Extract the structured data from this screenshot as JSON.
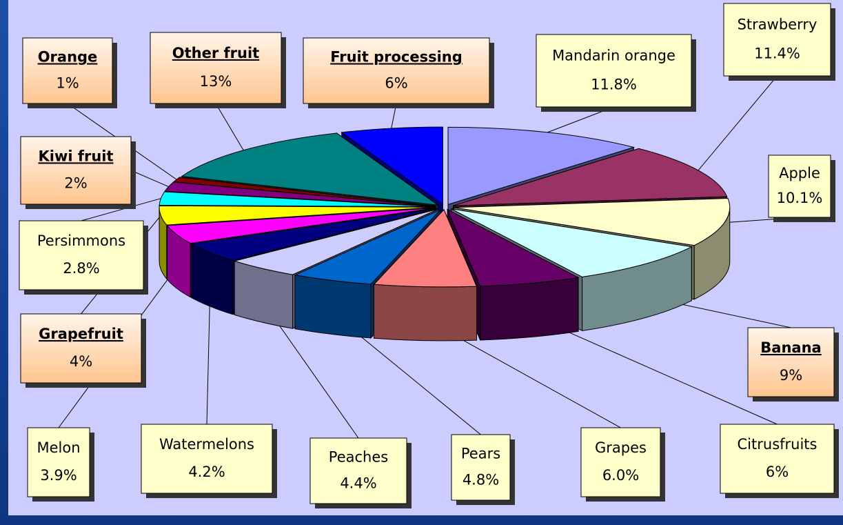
{
  "chart_data": {
    "type": "pie3d",
    "categories": [
      "Mandarin orange",
      "Strawberry",
      "Apple",
      "Banana",
      "Citrusfruits",
      "Grapes",
      "Pears",
      "Peaches",
      "Watermelons",
      "Melon",
      "Grapefruit",
      "Persimmons",
      "Kiwi fruit",
      "Orange",
      "Other fruit",
      "Fruit processing"
    ],
    "values": [
      11.8,
      11.4,
      10.1,
      9,
      6,
      6.0,
      4.8,
      4.4,
      4.2,
      3.9,
      4,
      2.8,
      2,
      1,
      13,
      6
    ],
    "value_labels": [
      "11.8%",
      "11.4%",
      "10.1%",
      "9%",
      "6%",
      "6.0%",
      "4.8%",
      "4.4%",
      "4.2%",
      "3.9%",
      "4%",
      "2.8%",
      "2%",
      "1%",
      "13%",
      "6%"
    ],
    "colors": [
      "#9999ff",
      "#993366",
      "#ffffcc",
      "#ccffff",
      "#660066",
      "#ff8080",
      "#0066cc",
      "#ccccff",
      "#000080",
      "#ff00ff",
      "#ffff00",
      "#00ffff",
      "#800080",
      "#800000",
      "#008080",
      "#0000ff"
    ],
    "emphasized": [
      false,
      false,
      false,
      true,
      false,
      false,
      false,
      false,
      false,
      false,
      true,
      false,
      true,
      true,
      true,
      true
    ]
  }
}
